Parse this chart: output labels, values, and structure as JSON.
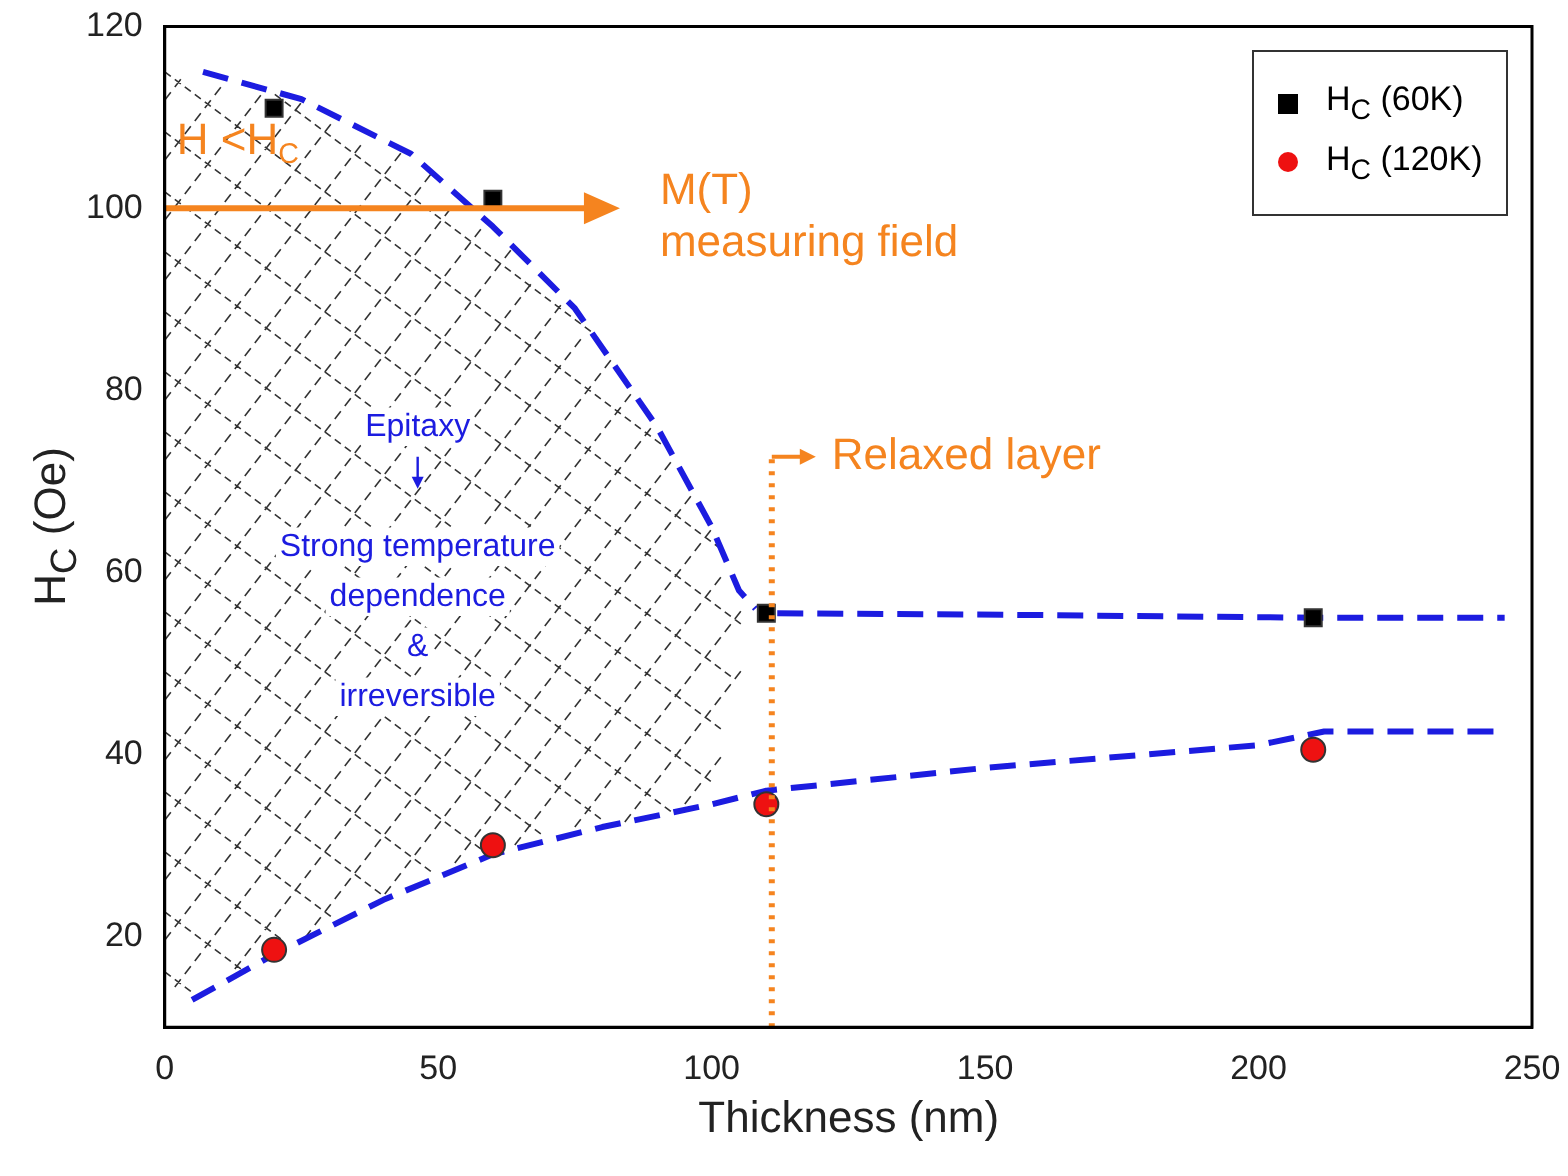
{
  "chart_data": {
    "type": "scatter",
    "xlabel": "Thickness (nm)",
    "ylabel": "H$_{C}$ (Oe)",
    "xlim": [
      0,
      250
    ],
    "ylim": [
      10,
      120
    ],
    "xticks": [
      0,
      50,
      100,
      150,
      200,
      250
    ],
    "yticks": [
      20,
      40,
      60,
      80,
      100,
      120
    ],
    "legend": "top right",
    "series": [
      {
        "name": "H$_{C}$ (60K)",
        "color": "#000000",
        "marker": "square",
        "x": [
          20,
          60,
          110,
          210
        ],
        "values": [
          111,
          101,
          55.5,
          55
        ]
      },
      {
        "name": "H$_{C}$ (120K)",
        "color": "#ee1111",
        "marker": "circle",
        "x": [
          20,
          60,
          110,
          210
        ],
        "values": [
          18.5,
          30,
          34.5,
          40.5
        ]
      },
      {
        "type": "line",
        "color": "#1c1ce0",
        "marker": "none",
        "line_style": "dashed",
        "x": [
          7,
          25,
          45,
          60,
          75,
          90,
          100,
          105,
          108
        ],
        "values": [
          115,
          112,
          106,
          98,
          89,
          76,
          65,
          58,
          56
        ]
      },
      {
        "type": "line",
        "color": "#1c1ce0",
        "marker": "none",
        "line_style": "dashed",
        "x": [
          112,
          160,
          210,
          245
        ],
        "values": [
          55.5,
          55.3,
          55,
          55
        ]
      },
      {
        "type": "line",
        "color": "#1c1ce0",
        "marker": "none",
        "line_style": "dashed",
        "x": [
          5,
          20,
          40,
          60,
          80,
          100,
          110,
          150,
          200,
          212,
          243
        ],
        "values": [
          13,
          18,
          24,
          29,
          32,
          34.5,
          36,
          38.5,
          41,
          42.5,
          42.5
        ]
      }
    ],
    "ref_lines": [
      {
        "axis": "y",
        "value": 100,
        "label": "M(T)\nmeasuring field",
        "color": "#f5841f",
        "line_style": "solid"
      },
      {
        "axis": "x",
        "value": 111,
        "label": "Relaxed layer",
        "color": "#f5841f",
        "line_style": "dotted"
      }
    ],
    "annotations": [
      "H <H$_{C}$",
      "Epitaxy",
      "Strong temperature\ndependence\n&\nirreversible"
    ]
  }
}
